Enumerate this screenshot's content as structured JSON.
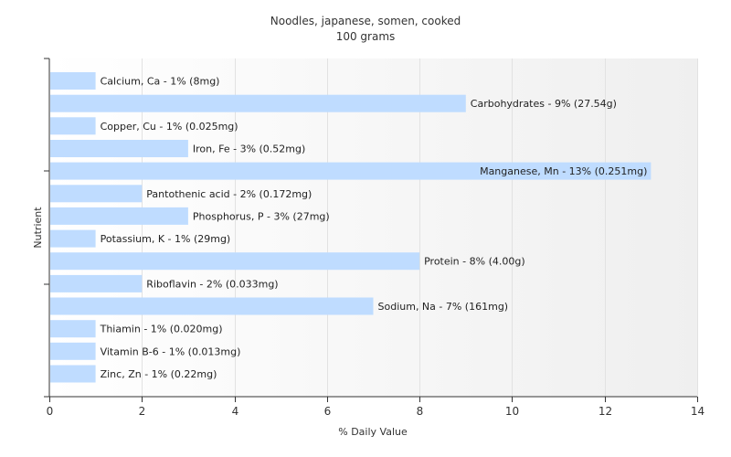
{
  "chart_data": {
    "type": "bar",
    "orientation": "horizontal",
    "title": "Noodles, japanese, somen, cooked",
    "subtitle": "100 grams",
    "xlabel": "% Daily Value",
    "ylabel": "Nutrient",
    "xlim": [
      0,
      14
    ],
    "xticks": [
      0,
      2,
      4,
      6,
      8,
      10,
      12,
      14
    ],
    "grid": "vertical",
    "bar_color": "#bfdcff",
    "bars": [
      {
        "label": "Calcium, Ca - 1% (8mg)",
        "value": 1
      },
      {
        "label": "Carbohydrates - 9% (27.54g)",
        "value": 9
      },
      {
        "label": "Copper, Cu - 1% (0.025mg)",
        "value": 1
      },
      {
        "label": "Iron, Fe - 3% (0.52mg)",
        "value": 3
      },
      {
        "label": "Manganese, Mn - 13% (0.251mg)",
        "value": 13
      },
      {
        "label": "Pantothenic acid - 2% (0.172mg)",
        "value": 2
      },
      {
        "label": "Phosphorus, P - 3% (27mg)",
        "value": 3
      },
      {
        "label": "Potassium, K - 1% (29mg)",
        "value": 1
      },
      {
        "label": "Protein - 8% (4.00g)",
        "value": 8
      },
      {
        "label": "Riboflavin - 2% (0.033mg)",
        "value": 2
      },
      {
        "label": "Sodium, Na - 7% (161mg)",
        "value": 7
      },
      {
        "label": "Thiamin - 1% (0.020mg)",
        "value": 1
      },
      {
        "label": "Vitamin B-6 - 1% (0.013mg)",
        "value": 1
      },
      {
        "label": "Zinc, Zn - 1% (0.22mg)",
        "value": 1
      }
    ]
  }
}
